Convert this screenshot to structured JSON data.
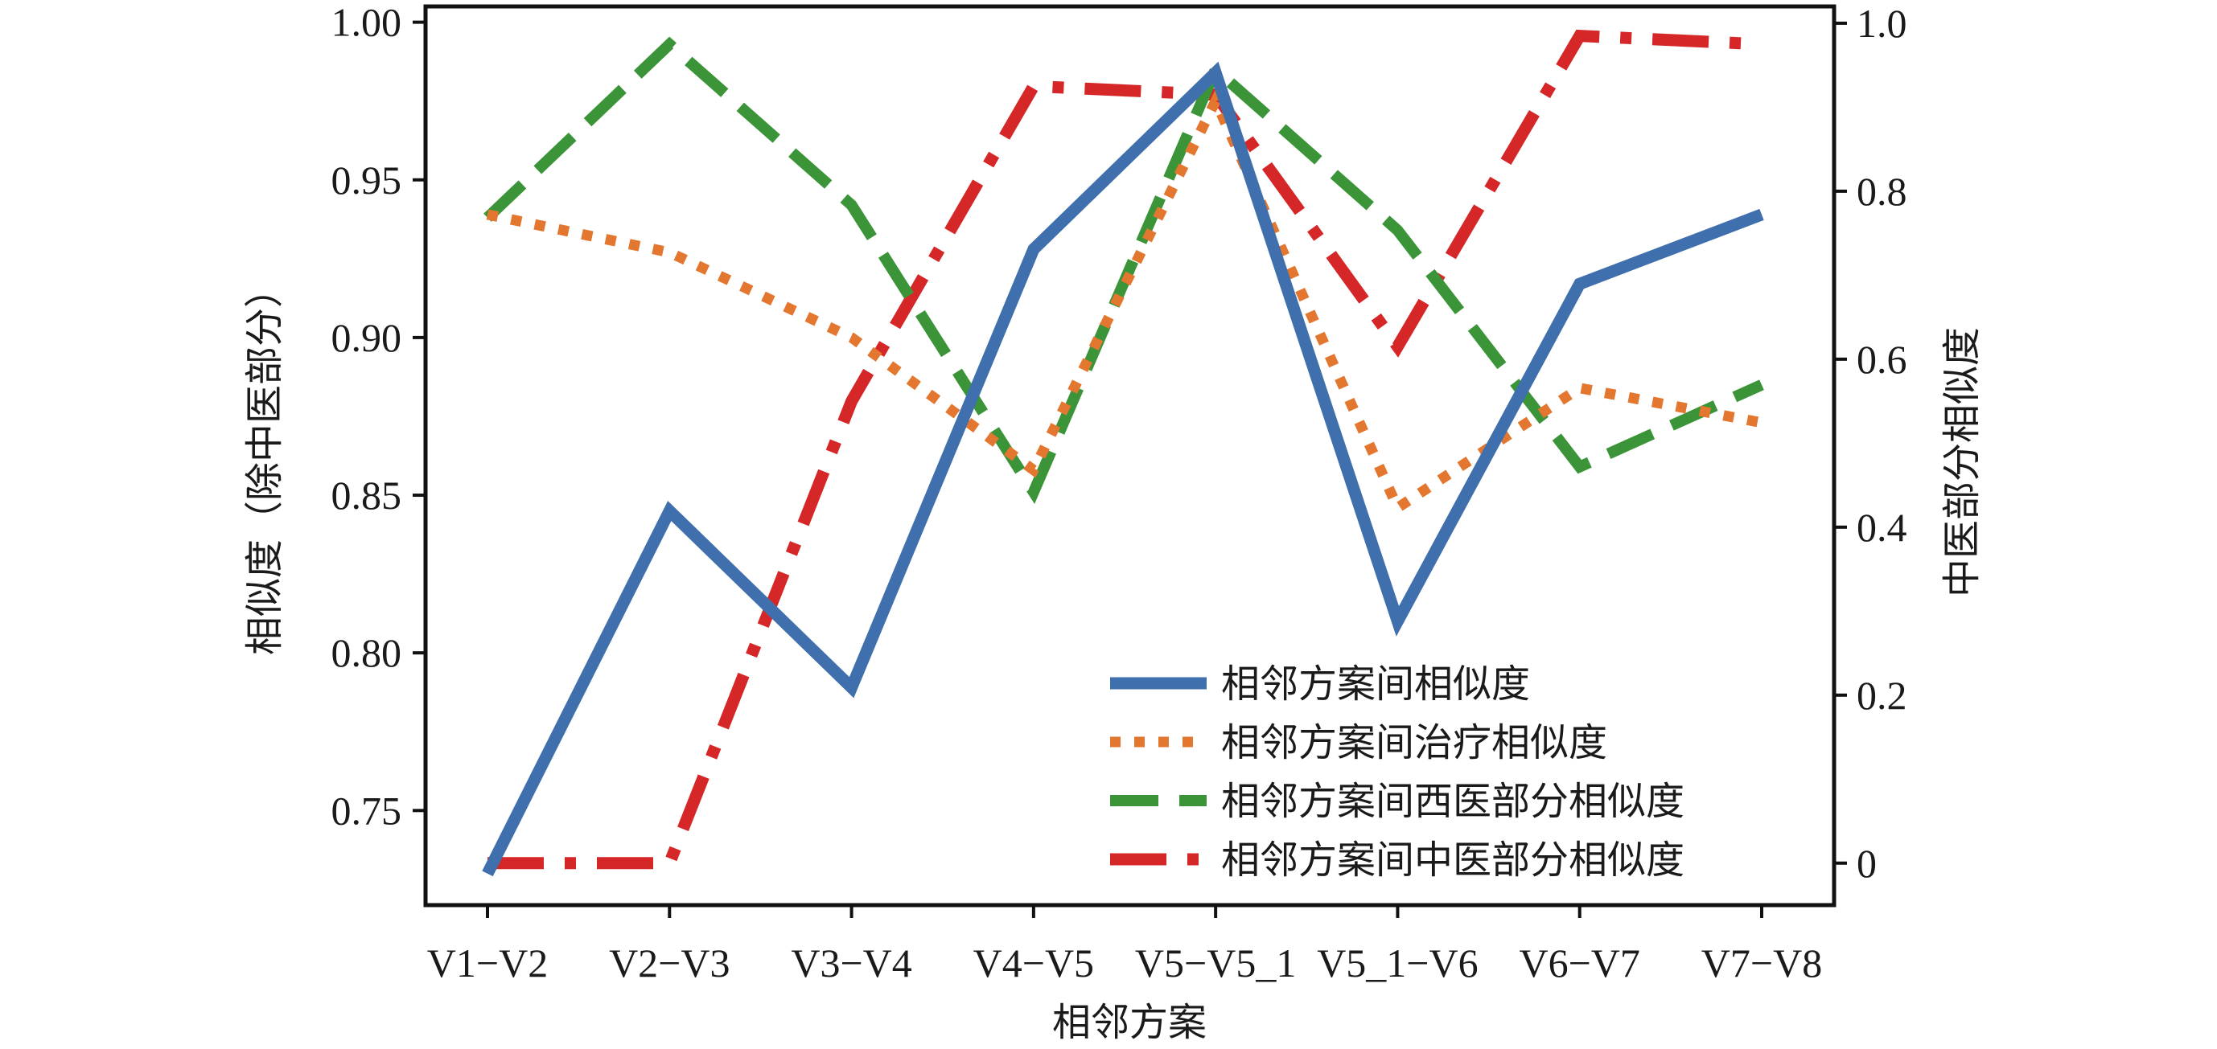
{
  "chart_data": {
    "type": "line",
    "categories": [
      "V1−V2",
      "V2−V3",
      "V3−V4",
      "V4−V5",
      "V5−V5_1",
      "V5_1−V6",
      "V6−V7",
      "V7−V8"
    ],
    "xlabel": "相邻方案",
    "ylabel_left": "相似度（除中医部分）",
    "ylabel_right": "中医部分相似度",
    "ylim_left": [
      0.72,
      1.005
    ],
    "ylim_right": [
      -0.05,
      1.02
    ],
    "yticks_left": [
      "0.75",
      "0.80",
      "0.85",
      "0.90",
      "0.95",
      "1.00"
    ],
    "yticks_right": [
      "0",
      "0.2",
      "0.4",
      "0.6",
      "0.8",
      "1.0"
    ],
    "grid": false,
    "legend_position": "lower-right",
    "series": [
      {
        "name": "相邻方案间相似度",
        "axis": "left",
        "style": "solid",
        "color": "#3f6fac",
        "values": [
          0.73,
          0.845,
          0.789,
          0.928,
          0.984,
          0.81,
          0.917,
          0.939
        ]
      },
      {
        "name": "相邻方案间治疗相似度",
        "axis": "left",
        "style": "dotted",
        "color": "#e3772f",
        "values": [
          0.939,
          0.927,
          0.9,
          0.858,
          0.975,
          0.846,
          0.884,
          0.873
        ]
      },
      {
        "name": "相邻方案间西医部分相似度",
        "axis": "left",
        "style": "dashed",
        "color": "#3b9538",
        "values": [
          0.938,
          0.993,
          0.942,
          0.851,
          0.985,
          0.934,
          0.859,
          0.885
        ]
      },
      {
        "name": "相邻方案间中医部分相似度",
        "axis": "right",
        "style": "dashdot",
        "color": "#d62728",
        "values": [
          0.0,
          0.0,
          0.55,
          0.925,
          0.915,
          0.615,
          0.985,
          0.975
        ]
      }
    ]
  }
}
